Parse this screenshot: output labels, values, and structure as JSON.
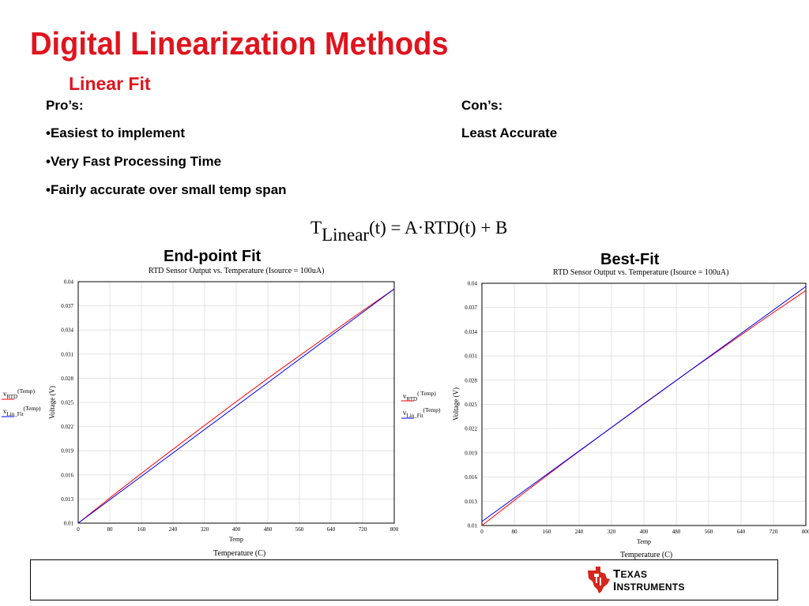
{
  "slide": {
    "title": "Digital Linearization Methods",
    "subtitle": "Linear Fit",
    "pros_heading": "Pro’s:",
    "pros": [
      "•Easiest to implement",
      "•Very Fast Processing Time",
      "•Fairly accurate over small temp span"
    ],
    "cons_heading": "Con’s:",
    "cons": [
      "Least Accurate"
    ],
    "formula": {
      "lhs_base": "T",
      "lhs_sub": "Linear",
      "rhs": "(t) = A·RTD(t) + B"
    },
    "accent_color": "#e0141e"
  },
  "logo": {
    "line1_first": "T",
    "line1_rest": "EXAS",
    "line2_first": "I",
    "line2_rest": "NSTRUMENTS",
    "color": "#d7261b"
  },
  "chart_data": [
    {
      "type": "line",
      "heading": "End-point Fit",
      "title": "RTD Sensor Output vs. Temperature (Isource = 100uA)",
      "xlabel": "Temp",
      "caption": "Temperature (C)",
      "ylabel": "Voltage (V)",
      "xlim": [
        0,
        800
      ],
      "ylim": [
        0.01,
        0.04
      ],
      "xticks": [
        0,
        80,
        160,
        240,
        320,
        400,
        480,
        560,
        640,
        720,
        800
      ],
      "yticks": [
        0.01,
        0.013,
        0.016,
        0.019,
        0.022,
        0.025,
        0.028,
        0.031,
        0.034,
        0.037,
        0.04
      ],
      "grid": true,
      "legend_position": "left",
      "series": [
        {
          "name_base": "v",
          "name_sub": "RTD",
          "name_arg": "(Temp)",
          "color": "#ff0000",
          "x": [
            0,
            100,
            200,
            300,
            400,
            500,
            600,
            700,
            800
          ],
          "y": [
            0.01,
            0.0139,
            0.0177,
            0.0214,
            0.0251,
            0.0287,
            0.0322,
            0.0357,
            0.0391
          ]
        },
        {
          "name_base": "v",
          "name_sub": "Lin_Fit",
          "name_arg": "(Temp)",
          "color": "#0000ff",
          "x": [
            0,
            800
          ],
          "y": [
            0.01,
            0.0391
          ]
        }
      ]
    },
    {
      "type": "line",
      "heading": "Best-Fit",
      "title": "RTD Sensor Output vs. Temperature (Isource = 100uA)",
      "xlabel": "Temp",
      "caption": "Temperature (C)",
      "ylabel": "Voltage (V)",
      "xlim": [
        0,
        800
      ],
      "ylim": [
        0.01,
        0.04
      ],
      "xticks": [
        0,
        80,
        160,
        240,
        320,
        400,
        480,
        560,
        640,
        720,
        800
      ],
      "yticks": [
        0.01,
        0.013,
        0.016,
        0.019,
        0.022,
        0.025,
        0.028,
        0.031,
        0.034,
        0.037,
        0.04
      ],
      "grid": true,
      "legend_position": "left",
      "series": [
        {
          "name_base": "v",
          "name_sub": "RTD",
          "name_arg": "( Temp)",
          "color": "#ff0000",
          "x": [
            0,
            100,
            200,
            300,
            400,
            500,
            600,
            700,
            800
          ],
          "y": [
            0.01,
            0.0139,
            0.0177,
            0.0214,
            0.0251,
            0.0287,
            0.0322,
            0.0357,
            0.0391
          ]
        },
        {
          "name_base": "v",
          "name_sub": "Lin_Fit",
          "name_arg": "(Temp)",
          "color": "#0000ff",
          "x": [
            0,
            800
          ],
          "y": [
            0.0105,
            0.0396
          ]
        }
      ]
    }
  ]
}
